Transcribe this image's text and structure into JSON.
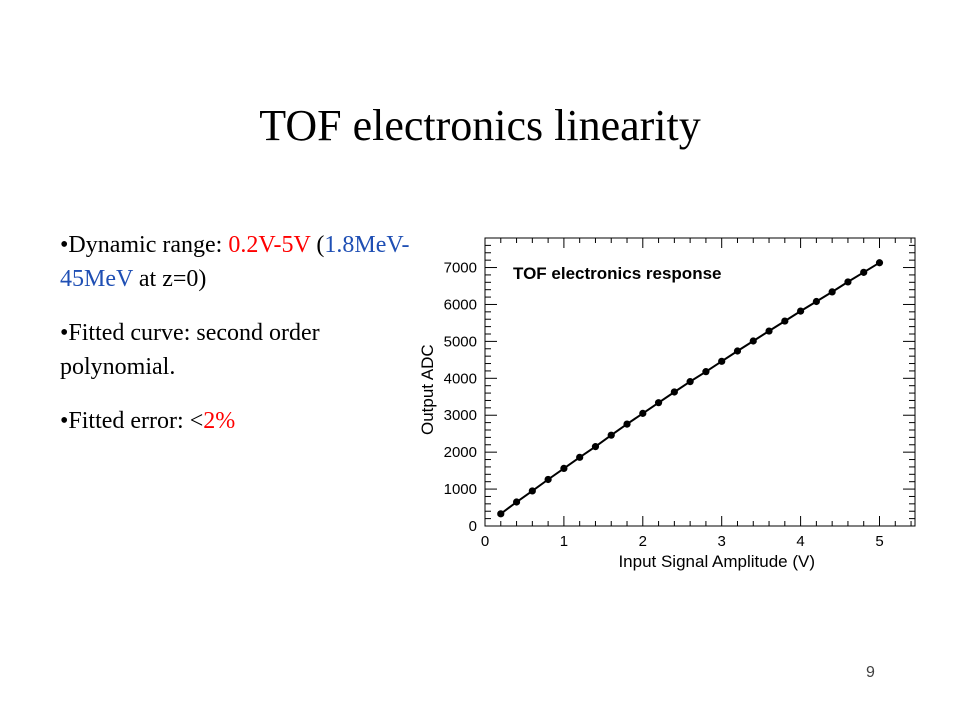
{
  "slide": {
    "title": "TOF electronics linearity",
    "page_number": "9"
  },
  "bullets": [
    {
      "parts": [
        {
          "text": "•Dynamic range: ",
          "color": "#000000"
        },
        {
          "text": "0.2V-5V",
          "color": "#ff0000"
        },
        {
          "text": " (",
          "color": "#000000"
        },
        {
          "text": "1.8MeV-45MeV",
          "color": "#1f4fb4"
        },
        {
          "text": " at z=0)",
          "color": "#000000"
        }
      ]
    },
    {
      "parts": [
        {
          "text": "•Fitted curve: second order polynomial.",
          "color": "#000000"
        }
      ]
    },
    {
      "parts": [
        {
          "text": "•Fitted error: <",
          "color": "#000000"
        },
        {
          "text": "2%",
          "color": "#ff0000"
        }
      ]
    }
  ],
  "chart_data": {
    "type": "scatter",
    "title": "TOF electronics response",
    "xlabel": "Input Signal Amplitude (V)",
    "ylabel": "Output ADC",
    "xlim": [
      0,
      5.45
    ],
    "ylim": [
      0,
      7800
    ],
    "x_ticks": [
      "0",
      "1",
      "2",
      "3",
      "4",
      "5"
    ],
    "y_ticks": [
      "0",
      "1000",
      "2000",
      "3000",
      "4000",
      "5000",
      "6000",
      "7000"
    ],
    "x": [
      0.2,
      0.4,
      0.6,
      0.8,
      1.0,
      1.2,
      1.4,
      1.6,
      1.8,
      2.0,
      2.2,
      2.4,
      2.6,
      2.8,
      3.0,
      3.2,
      3.4,
      3.6,
      3.8,
      4.0,
      4.2,
      4.4,
      4.6,
      4.8,
      5.0
    ],
    "y": [
      330,
      650,
      950,
      1260,
      1560,
      1860,
      2150,
      2460,
      2760,
      3050,
      3340,
      3630,
      3910,
      4180,
      4460,
      4740,
      5010,
      5280,
      5550,
      5820,
      6080,
      6340,
      6610,
      6870,
      7130
    ],
    "grid": false,
    "fit_curve": true,
    "colors": {
      "marker": "#000000",
      "line": "#000000"
    }
  }
}
